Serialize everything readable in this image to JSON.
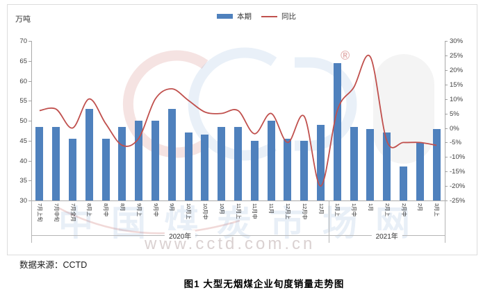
{
  "chart_data": {
    "type": "bar",
    "combo": "bar+line",
    "unit_label": "万吨",
    "categories": [
      "7月上旬",
      "7月中旬",
      "7月全月",
      "8月上",
      "8月中",
      "8月",
      "9月上",
      "9月中",
      "9月",
      "10月上",
      "10月中",
      "10月",
      "11月上",
      "11月中",
      "11月",
      "12月上",
      "12月中",
      "12月",
      "1月上",
      "1月中",
      "1月",
      "2月上",
      "2月中",
      "2月",
      "3月上"
    ],
    "series": [
      {
        "name": "本期",
        "type": "bar",
        "axis": "left",
        "color": "#4f81bd",
        "values": [
          48.5,
          48.5,
          45.5,
          53,
          45.5,
          48.5,
          50,
          50,
          53,
          47,
          46.5,
          48.5,
          48.5,
          45,
          50,
          45.5,
          45,
          49,
          64.5,
          48.5,
          48,
          47,
          38.5,
          44.5,
          48
        ]
      },
      {
        "name": "同比",
        "type": "line",
        "axis": "right",
        "color": "#c0504d",
        "values": [
          6,
          6.5,
          0,
          10,
          1.5,
          -6,
          -3.5,
          10,
          13.5,
          9.5,
          5.5,
          5,
          6,
          -2,
          5,
          -5,
          4,
          -20,
          6,
          14,
          24.5,
          -4.5,
          -5,
          -5,
          -6
        ]
      }
    ],
    "left_axis": {
      "min": 30,
      "max": 70,
      "step": 5,
      "tick_labels": [
        "70",
        "65",
        "60",
        "55",
        "50",
        "45",
        "40",
        "35",
        "30"
      ]
    },
    "right_axis": {
      "min": -25,
      "max": 30,
      "step": 5,
      "tick_labels": [
        "30%",
        "25%",
        "20%",
        "15%",
        "10%",
        "5%",
        "0%",
        "-5%",
        "-10%",
        "-15%",
        "-20%",
        "-25%"
      ]
    },
    "year_groups": [
      {
        "label": "2020年",
        "from_index": 0,
        "to_index": 17
      },
      {
        "label": "2021年",
        "from_index": 18,
        "to_index": 24
      }
    ],
    "legend": [
      {
        "label": "本期"
      },
      {
        "label": "同比"
      }
    ],
    "grid": "off",
    "legend_position": "top-center"
  },
  "watermark": {
    "logo": "CCTD",
    "registered_mark": "®",
    "site_text": "中国煤炭市场网",
    "url": "www.cctd.com.cn"
  },
  "source": "数据来源：CCTD",
  "caption": "图1 大型无烟煤企业旬度销量走势图",
  "colors": {
    "bar": "#4f81bd",
    "line": "#c0504d",
    "axis": "#a8a8a8",
    "text": "#333333"
  }
}
